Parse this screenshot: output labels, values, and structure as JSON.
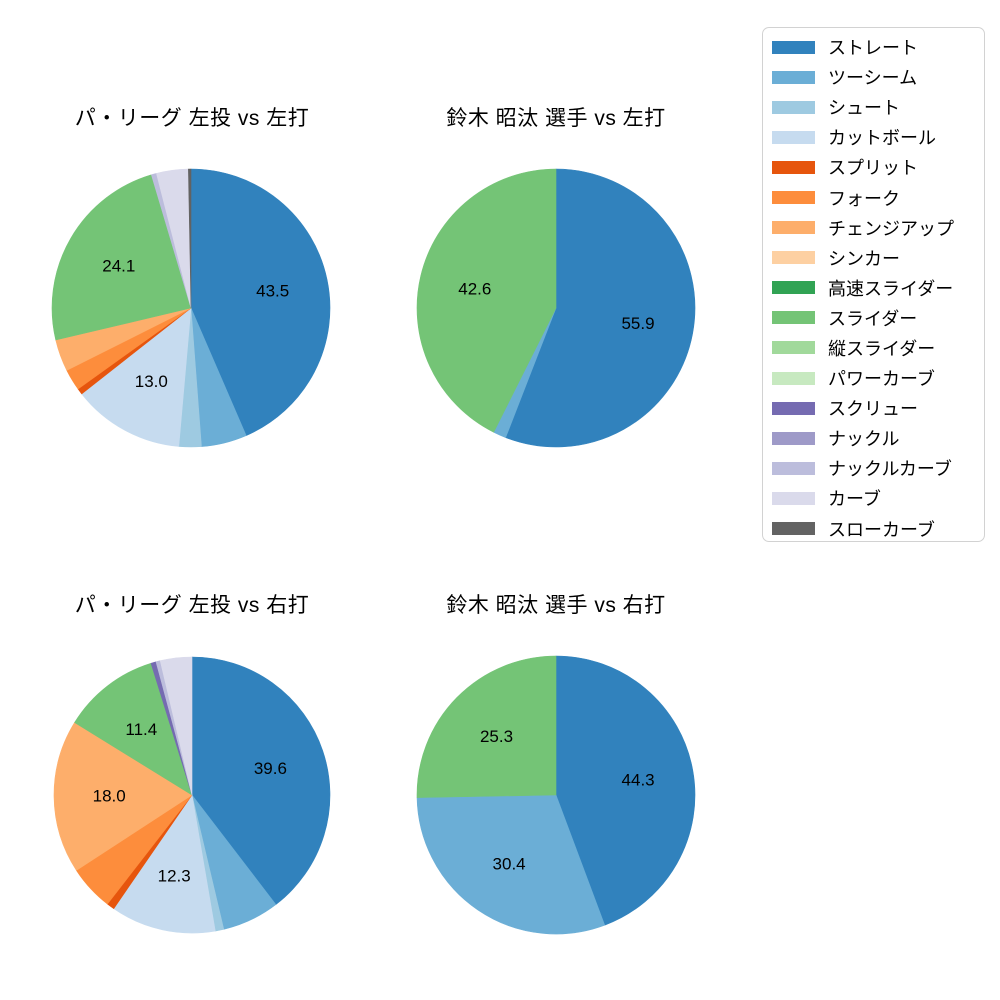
{
  "figure": {
    "background": "#ffffff",
    "text_color": "#000000"
  },
  "legend": {
    "background": "#ffffff",
    "border_color": "#d2d2d2",
    "position": "top-right",
    "items": [
      {
        "label": "ストレート",
        "color": "#3182bd"
      },
      {
        "label": "ツーシーム",
        "color": "#6baed6"
      },
      {
        "label": "シュート",
        "color": "#9ecae1"
      },
      {
        "label": "カットボール",
        "color": "#c6dbef"
      },
      {
        "label": "スプリット",
        "color": "#e6550d"
      },
      {
        "label": "フォーク",
        "color": "#fd8d3c"
      },
      {
        "label": "チェンジアップ",
        "color": "#fdae6b"
      },
      {
        "label": "シンカー",
        "color": "#fdd0a2"
      },
      {
        "label": "高速スライダー",
        "color": "#31a354"
      },
      {
        "label": "スライダー",
        "color": "#74c476"
      },
      {
        "label": "縦スライダー",
        "color": "#a1d99b"
      },
      {
        "label": "パワーカーブ",
        "color": "#c7e9c0"
      },
      {
        "label": "スクリュー",
        "color": "#756bb1"
      },
      {
        "label": "ナックル",
        "color": "#9e9ac8"
      },
      {
        "label": "ナックルカーブ",
        "color": "#bcbddc"
      },
      {
        "label": "カーブ",
        "color": "#dadaeb"
      },
      {
        "label": "スローカーブ",
        "color": "#636363"
      }
    ]
  },
  "chart_data": [
    {
      "type": "pie",
      "title": "パ・リーグ 左投 vs 左打",
      "start_angle": "12-oclock",
      "direction": "clockwise",
      "label_threshold_pct": 10,
      "label_distance": 0.6,
      "categories": [
        "ストレート",
        "ツーシーム",
        "シュート",
        "カットボール",
        "スプリット",
        "フォーク",
        "チェンジアップ",
        "スライダー",
        "ナックルカーブ",
        "カーブ",
        "スローカーブ"
      ],
      "values": [
        43.5,
        5.3,
        2.6,
        13.0,
        0.7,
        2.5,
        3.7,
        24.1,
        0.6,
        3.7,
        0.3
      ],
      "visible_labels": [
        "43.5",
        "13.0",
        "24.1"
      ]
    },
    {
      "type": "pie",
      "title": "鈴木 昭汰 選手 vs 左打",
      "start_angle": "12-oclock",
      "direction": "clockwise",
      "label_threshold_pct": 10,
      "label_distance": 0.6,
      "categories": [
        "ストレート",
        "ツーシーム",
        "スライダー"
      ],
      "values": [
        55.9,
        1.5,
        42.6
      ],
      "visible_labels": [
        "55.9",
        "42.6"
      ]
    },
    {
      "type": "pie",
      "title": "パ・リーグ 左投 vs 右打",
      "start_angle": "12-oclock",
      "direction": "clockwise",
      "label_threshold_pct": 10,
      "label_distance": 0.6,
      "categories": [
        "ストレート",
        "ツーシーム",
        "シュート",
        "カットボール",
        "スプリット",
        "フォーク",
        "チェンジアップ",
        "スライダー",
        "スクリュー",
        "ナックルカーブ",
        "カーブ"
      ],
      "values": [
        39.6,
        6.7,
        1.0,
        12.3,
        0.9,
        5.3,
        18.0,
        11.4,
        0.6,
        0.5,
        3.7
      ],
      "visible_labels": [
        "39.6",
        "12.3",
        "18.0",
        "11.4"
      ]
    },
    {
      "type": "pie",
      "title": "鈴木 昭汰 選手 vs 右打",
      "start_angle": "12-oclock",
      "direction": "clockwise",
      "label_threshold_pct": 10,
      "label_distance": 0.6,
      "categories": [
        "ストレート",
        "ツーシーム",
        "スライダー"
      ],
      "values": [
        44.3,
        30.4,
        25.3
      ],
      "visible_labels": [
        "44.3",
        "30.4",
        "25.3"
      ]
    }
  ]
}
